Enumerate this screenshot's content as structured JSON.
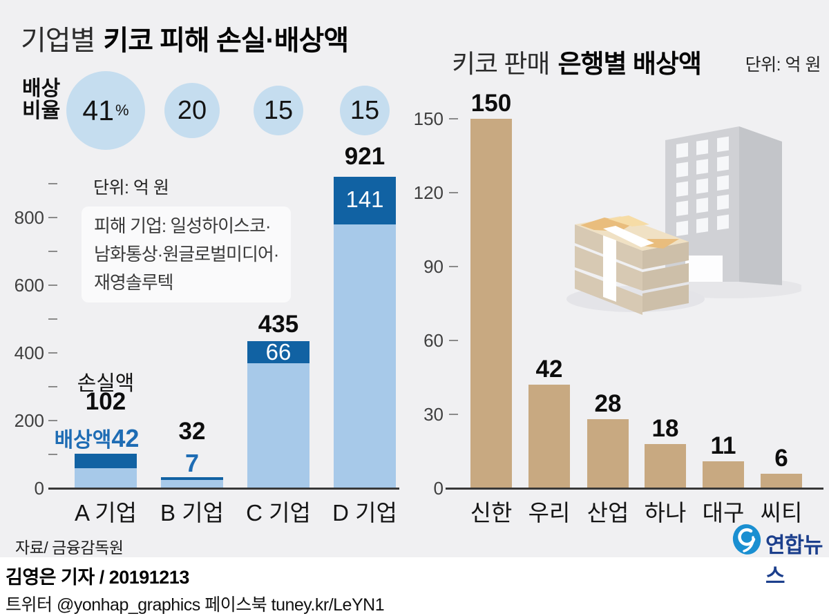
{
  "left": {
    "title_light": "기업별",
    "title_bold": "키코 피해 손실·배상액",
    "ratio_lines": [
      "배상",
      "비율"
    ],
    "unit": "단위: 억 원",
    "note_lines": [
      "피해 기업: 일성하이스코·",
      "남화통상·원글로벌미디어·",
      "재영솔루텍"
    ],
    "percent_suffix": "%"
  },
  "right": {
    "title_light": "키코 판매",
    "title_bold": "은행별 배상액",
    "unit": "단위: 억 원"
  },
  "footer": {
    "source": "자료/ 금융감독원",
    "credit": "김영은 기자 / 20191213",
    "social": "트위터 @yonhap_graphics  페이스북 tuney.kr/LeYN1",
    "logo_text": "연합뉴스"
  },
  "colors": {
    "background": "#f0f0f2",
    "bar_light_blue": "#a7c9e9",
    "bar_dark_blue": "#1162a3",
    "bar_tan": "#c8a981",
    "circle_blue": "#c5ddef",
    "comp_text_blue": "#1e6cb4",
    "logo_blue": "#1a8fd1",
    "logo_navy": "#1c3f8c"
  },
  "chart_data": [
    {
      "type": "bar",
      "title": "기업별 키코 피해 손실·배상액",
      "unit": "억 원",
      "categories": [
        "A 기업",
        "B 기업",
        "C 기업",
        "D 기업"
      ],
      "series": [
        {
          "name": "손실액",
          "values": [
            102,
            32,
            435,
            921
          ]
        },
        {
          "name": "배상액",
          "values": [
            42,
            7,
            66,
            141
          ]
        }
      ],
      "ratio": {
        "label": "배상 비율",
        "values": [
          41,
          20,
          15,
          15
        ],
        "unit": "%"
      },
      "ylim": [
        0,
        900
      ],
      "yticks_labeled": [
        0,
        200,
        400,
        600,
        800
      ],
      "yticks_minor": [
        100,
        300,
        500,
        700,
        900
      ],
      "note": "피해 기업: 일성하이스코·남화통상·원글로벌미디어·재영솔루텍",
      "legend_position": "annotations on bars"
    },
    {
      "type": "bar",
      "title": "키코 판매 은행별 배상액",
      "unit": "억 원",
      "categories": [
        "신한",
        "우리",
        "산업",
        "하나",
        "대구",
        "씨티"
      ],
      "values": [
        150,
        42,
        28,
        18,
        11,
        6
      ],
      "ylim": [
        0,
        150
      ],
      "yticks_labeled": [
        0,
        30,
        60,
        90,
        120,
        150
      ]
    }
  ]
}
